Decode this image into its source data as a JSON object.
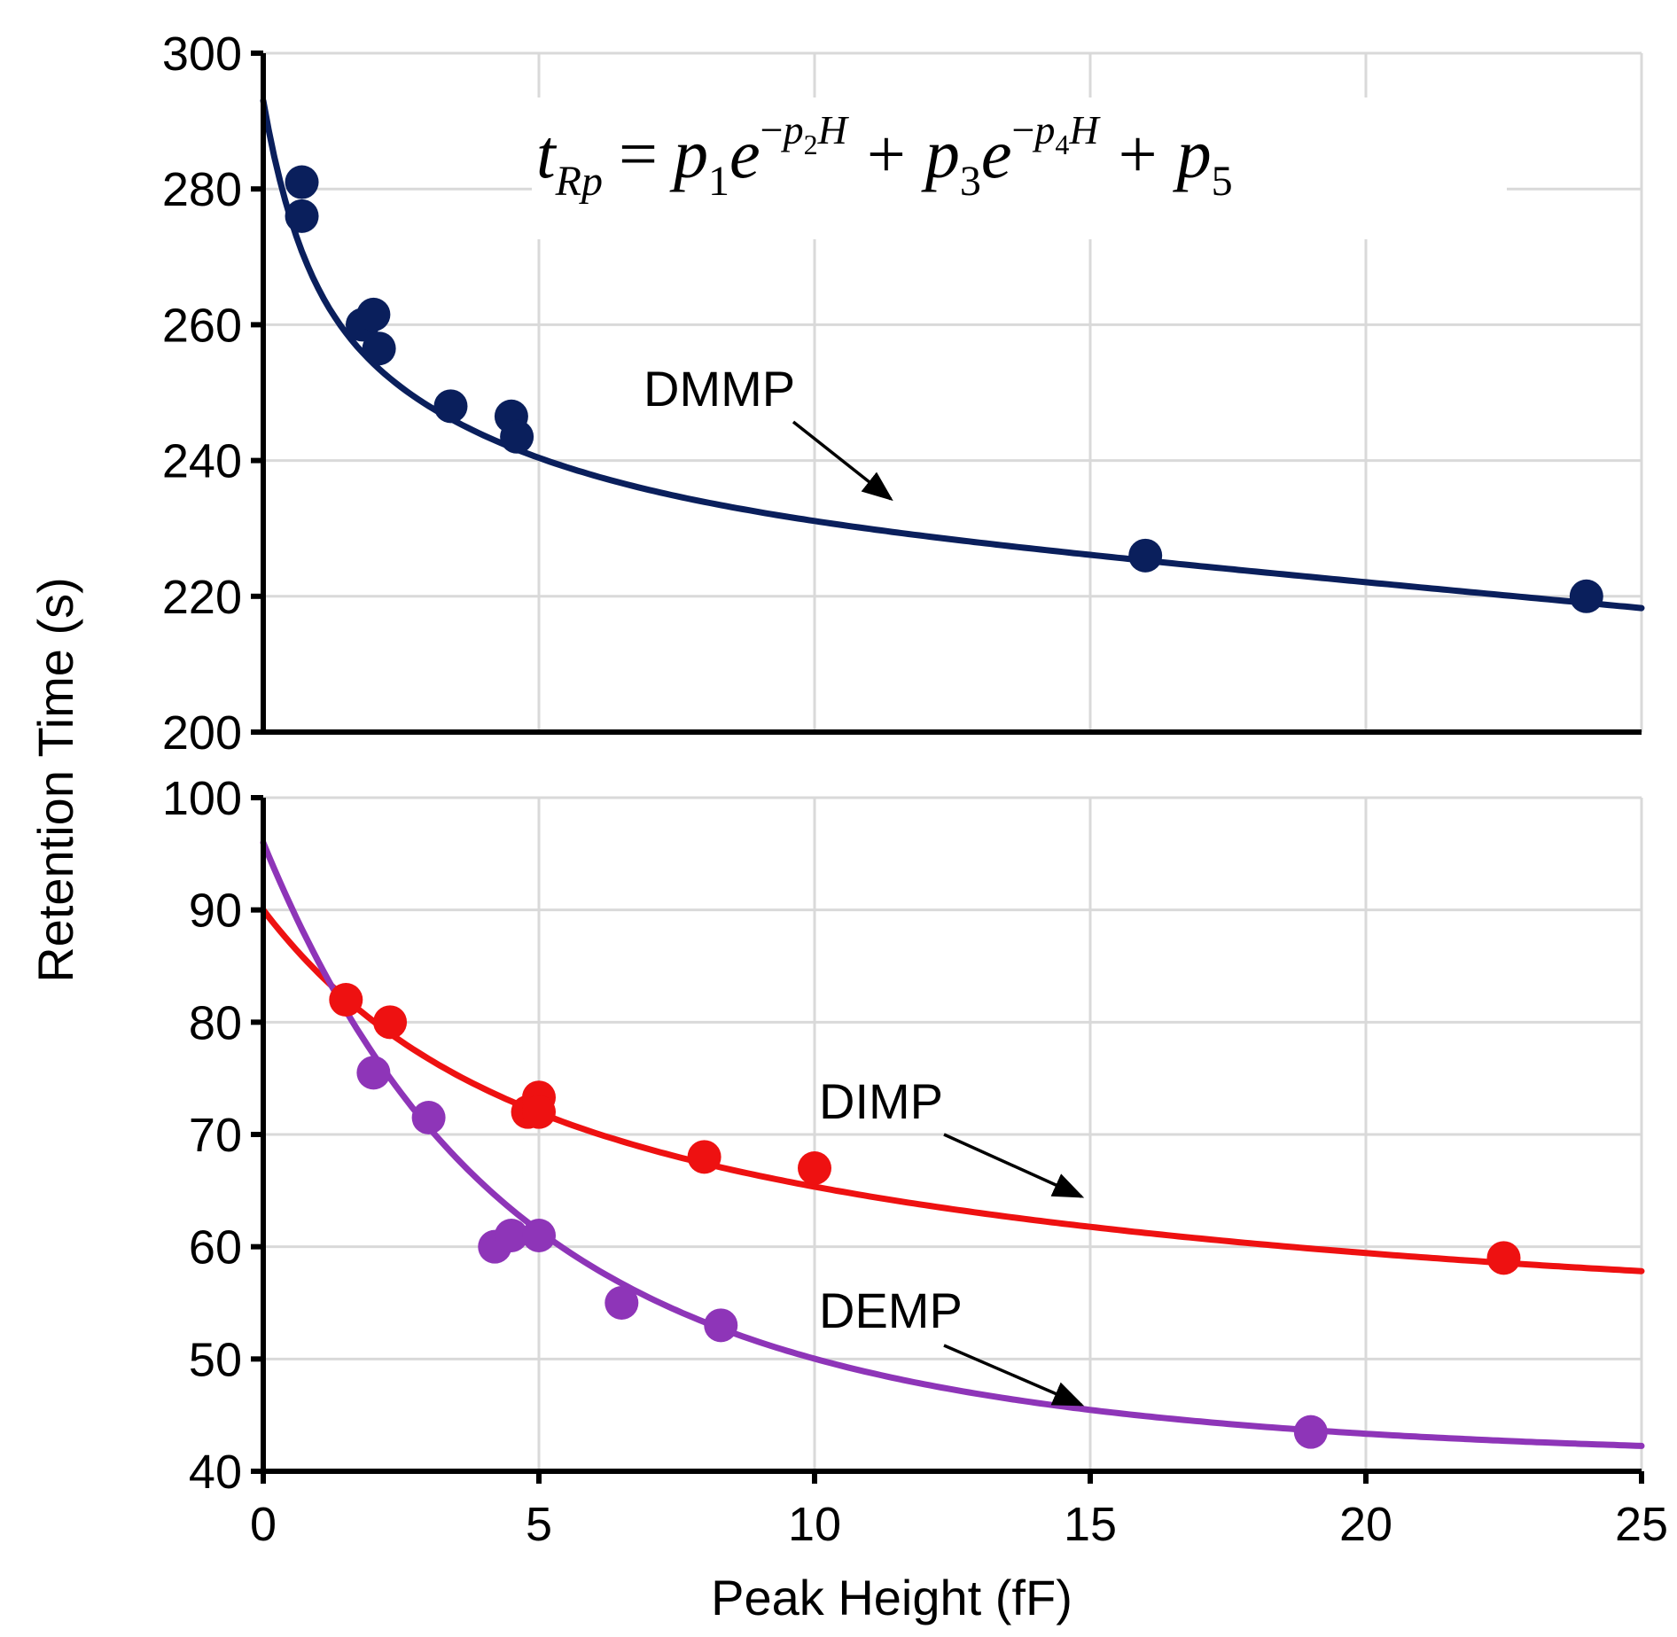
{
  "chart_data": {
    "type": "scatter",
    "xlabel": "Peak Height (fF)",
    "ylabel": "Retention Time (s)",
    "xlim": [
      0,
      25
    ],
    "x_ticks": [
      "0",
      "5",
      "10",
      "15",
      "20",
      "25"
    ],
    "grid": true,
    "formula": {
      "t": "t",
      "sub_Rp": "Rp",
      "equals": "=",
      "p1": "p",
      "sub_1": "1",
      "e1": "e",
      "exp1_minus": "−",
      "exp1_p": "p",
      "exp1_sub": "2",
      "exp1_H": "H",
      "plus1": "+",
      "p3": "p",
      "sub_3": "3",
      "e2": "e",
      "exp2_minus": "−",
      "exp2_p": "p",
      "exp2_sub": "4",
      "exp2_H": "H",
      "plus2": "+",
      "p5": "p",
      "sub_5": "5"
    },
    "panels": [
      {
        "name": "top",
        "ylim": [
          200,
          300
        ],
        "y_ticks": [
          "300",
          "280",
          "260",
          "240",
          "220",
          "200"
        ],
        "series": [
          {
            "name": "DMMP",
            "label": "DMMP",
            "color": "#0a1f5c",
            "points": [
              {
                "x": 0.7,
                "y": 281
              },
              {
                "x": 0.7,
                "y": 276
              },
              {
                "x": 1.8,
                "y": 260
              },
              {
                "x": 2.0,
                "y": 261.5
              },
              {
                "x": 2.1,
                "y": 256.5
              },
              {
                "x": 3.4,
                "y": 248
              },
              {
                "x": 4.5,
                "y": 246.5
              },
              {
                "x": 4.6,
                "y": 243.5
              },
              {
                "x": 16.0,
                "y": 226
              },
              {
                "x": 24.0,
                "y": 220
              }
            ],
            "fit": {
              "p1": 24,
              "p2": 1.5,
              "p3": 32,
              "p4": 0.3,
              "p5": 237,
              "linear": -0.75
            }
          }
        ]
      },
      {
        "name": "bottom",
        "ylim": [
          40,
          100
        ],
        "y_ticks": [
          "100",
          "90",
          "80",
          "70",
          "60",
          "50",
          "40"
        ],
        "series": [
          {
            "name": "DIMP",
            "label": "DIMP",
            "color": "#ee1111",
            "points": [
              {
                "x": 1.5,
                "y": 82
              },
              {
                "x": 2.3,
                "y": 80
              },
              {
                "x": 4.8,
                "y": 72
              },
              {
                "x": 5.0,
                "y": 73.3
              },
              {
                "x": 5.0,
                "y": 72
              },
              {
                "x": 8.0,
                "y": 68
              },
              {
                "x": 10.0,
                "y": 67
              },
              {
                "x": 22.5,
                "y": 59
              }
            ],
            "fit": {
              "p1": 14,
              "p2": 0.35,
              "p3": 22,
              "p4": 0.07,
              "p5": 54
            }
          },
          {
            "name": "DEMP",
            "label": "DEMP",
            "color": "#8e35b8",
            "points": [
              {
                "x": 2.0,
                "y": 75.5
              },
              {
                "x": 3.0,
                "y": 71.5
              },
              {
                "x": 4.2,
                "y": 60
              },
              {
                "x": 4.5,
                "y": 61
              },
              {
                "x": 5.0,
                "y": 61
              },
              {
                "x": 6.5,
                "y": 55
              },
              {
                "x": 8.3,
                "y": 53
              },
              {
                "x": 19.0,
                "y": 43.5
              }
            ],
            "fit": {
              "p1": 30,
              "p2": 0.3,
              "p3": 25,
              "p4": 0.12,
              "p5": 41
            }
          }
        ]
      }
    ]
  }
}
